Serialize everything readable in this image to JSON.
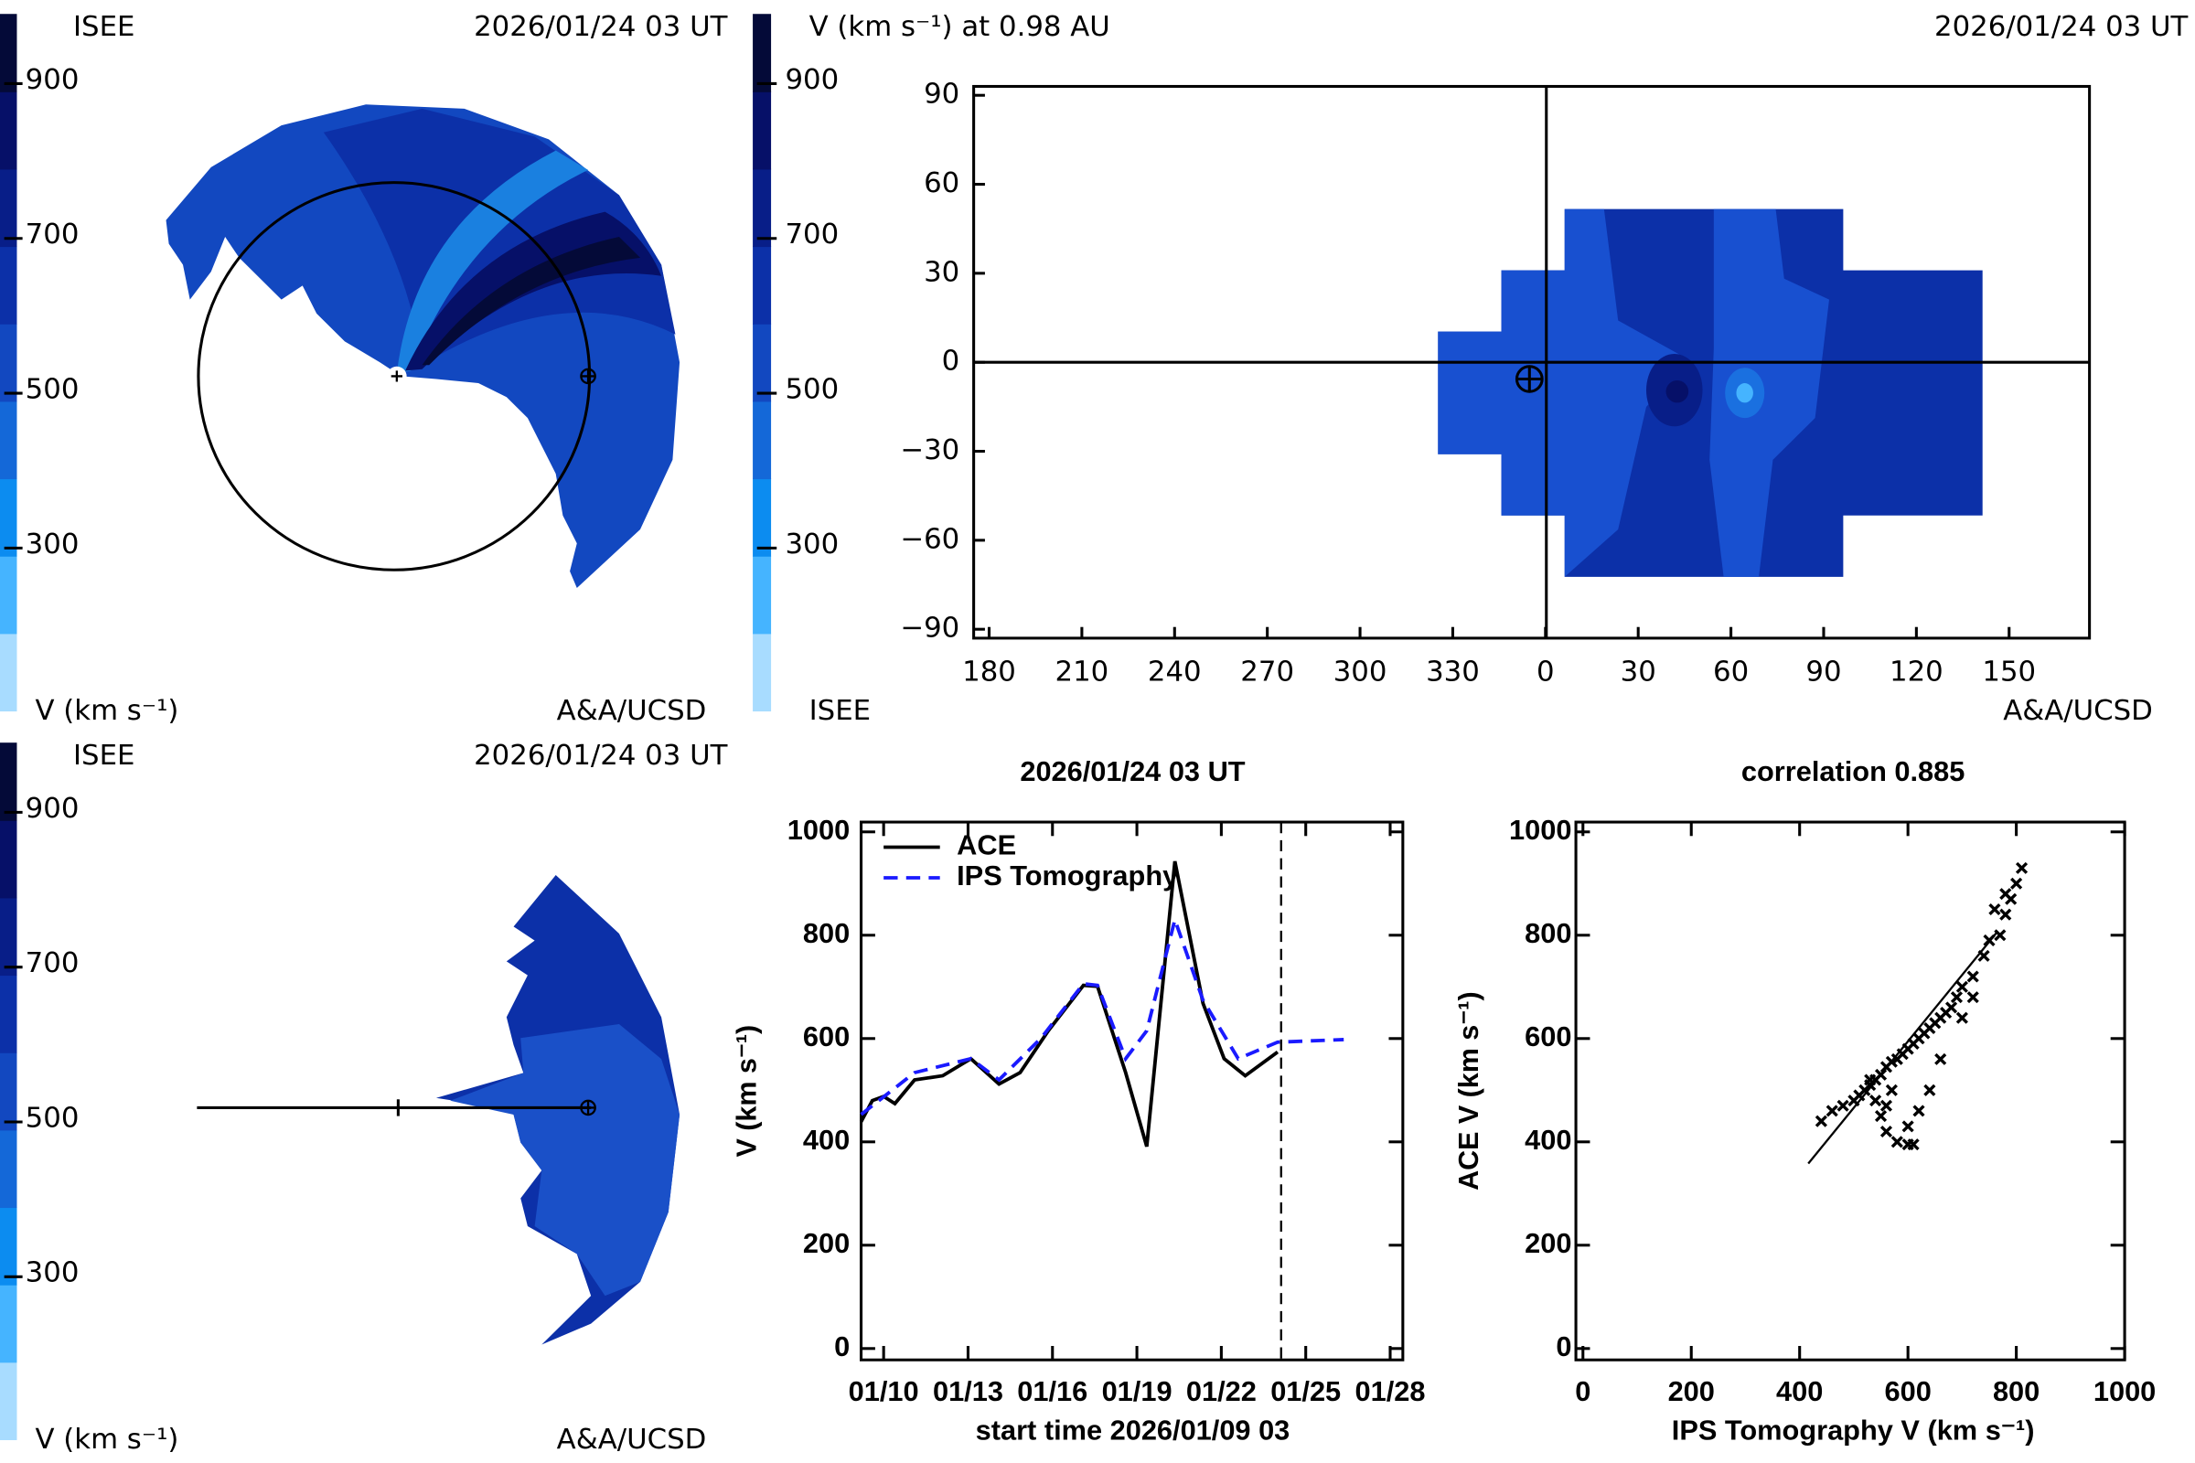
{
  "chart_data": [
    {
      "type": "polar-contour",
      "label": "ISEE",
      "date": "2026/01/24 03 UT",
      "credit": "A&A/UCSD",
      "colorbar": {
        "label": "V (km s⁻¹)",
        "lim": [
          90,
          990
        ],
        "ticks": [
          300,
          500,
          700,
          900
        ],
        "colors": [
          "#a8dcff",
          "#45b4ff",
          "#0c8cf0",
          "#1468d8",
          "#1248c0",
          "#0c30a8",
          "#081e88",
          "#061068",
          "#040a38"
        ]
      }
    },
    {
      "type": "map-contour",
      "title": "V (km s⁻¹) at 0.98 AU",
      "date": "2026/01/24 03 UT",
      "label": "ISEE",
      "credit": "A&A/UCSD",
      "colorbar": {
        "lim": [
          90,
          990
        ],
        "ticks": [
          300,
          500,
          700,
          900
        ],
        "colors": [
          "#a8dcff",
          "#45b4ff",
          "#0c8cf0",
          "#1468d8",
          "#1248c0",
          "#0c30a8",
          "#081e88",
          "#061068",
          "#040a38"
        ]
      },
      "xlim": [
        175,
        536
      ],
      "xticks": [
        180,
        210,
        240,
        270,
        300,
        330,
        {
          "value": 360,
          "label": "0"
        },
        {
          "value": 390,
          "label": "30"
        },
        {
          "value": 420,
          "label": "60"
        },
        {
          "value": 450,
          "label": "90"
        },
        {
          "value": 480,
          "label": "120"
        },
        {
          "value": 510,
          "label": "150"
        }
      ],
      "ylim": [
        -93,
        93
      ],
      "yticks": [
        {
          "value": -90,
          "label": "−90"
        },
        {
          "value": -60,
          "label": "−60"
        },
        {
          "value": -30,
          "label": "−30"
        },
        0,
        30,
        60,
        90
      ]
    },
    {
      "type": "polar-contour",
      "label": "ISEE",
      "date": "2026/01/24 03 UT",
      "credit": "A&A/UCSD",
      "colorbar": {
        "label": "V (km s⁻¹)",
        "lim": [
          90,
          990
        ],
        "ticks": [
          300,
          500,
          700,
          900
        ],
        "colors": [
          "#a8dcff",
          "#45b4ff",
          "#0c8cf0",
          "#1468d8",
          "#1248c0",
          "#0c30a8",
          "#081e88",
          "#061068",
          "#040a38"
        ]
      }
    },
    {
      "type": "line",
      "title": "2026/01/24 03 UT",
      "x_label": "start time 2026/01/09 03",
      "y_label": "V (km s⁻¹)",
      "xlim": [
        9.2,
        28.45
      ],
      "ylim": [
        -22,
        1019
      ],
      "xticks": [
        {
          "value": 10,
          "label": "01/10"
        },
        {
          "value": 13,
          "label": "01/13"
        },
        {
          "value": 16,
          "label": "01/16"
        },
        {
          "value": 19,
          "label": "01/19"
        },
        {
          "value": 22,
          "label": "01/22"
        },
        {
          "value": 25,
          "label": "01/25"
        },
        {
          "value": 28,
          "label": "01/28"
        }
      ],
      "yticks": [
        0,
        200,
        400,
        600,
        800,
        1000
      ],
      "marker_x": 24.125,
      "legend": "upper left",
      "series": [
        {
          "name": "ACE",
          "color": "#000000",
          "style": "solid",
          "x": [
            9.2,
            9.6,
            10,
            10.4,
            11.1,
            12.1,
            13.1,
            14.1,
            14.85,
            15.85,
            17.1,
            17.6,
            18.6,
            19.35,
            20.35,
            21.35,
            22.1,
            22.85,
            24.0
          ],
          "values": [
            439,
            480,
            488,
            474,
            520,
            528,
            561,
            512,
            534,
            615,
            703,
            701,
            534,
            391,
            943,
            668,
            561,
            528,
            574
          ]
        },
        {
          "name": "IPS Tomography",
          "color": "#1a1aff",
          "style": "dashed",
          "x": [
            9.2,
            11.1,
            13.1,
            14.1,
            15.6,
            17.1,
            17.6,
            18.6,
            19.35,
            20.35,
            21.35,
            22.6,
            24.0,
            26.35
          ],
          "values": [
            453,
            534,
            561,
            520,
            601,
            706,
            703,
            561,
            615,
            830,
            674,
            561,
            593,
            598
          ]
        }
      ]
    },
    {
      "type": "scatter",
      "title": "correlation 0.885",
      "x_label": "IPS Tomography V (km s⁻¹)",
      "y_label": "ACE V (km s⁻¹)",
      "xlim": [
        -13,
        1000
      ],
      "ylim": [
        -22,
        1019
      ],
      "xticks": [
        0,
        200,
        400,
        600,
        800,
        1000
      ],
      "yticks": [
        0,
        200,
        400,
        600,
        800,
        1000
      ],
      "color": "#000000",
      "x": [
        440,
        460,
        480,
        500,
        510,
        520,
        530,
        540,
        550,
        560,
        570,
        580,
        590,
        600,
        610,
        620,
        630,
        640,
        650,
        660,
        670,
        680,
        690,
        700,
        720,
        740,
        750,
        770,
        780,
        790,
        800,
        810,
        760,
        780,
        720,
        700,
        660,
        640,
        620,
        600,
        580,
        560,
        550,
        540,
        530,
        560,
        570,
        600,
        610
      ],
      "values": [
        440,
        460,
        470,
        480,
        490,
        500,
        510,
        520,
        530,
        545,
        555,
        560,
        570,
        580,
        590,
        600,
        610,
        620,
        630,
        640,
        650,
        660,
        680,
        700,
        720,
        760,
        790,
        800,
        840,
        870,
        900,
        930,
        850,
        880,
        680,
        640,
        560,
        500,
        460,
        430,
        400,
        420,
        450,
        480,
        520,
        470,
        500,
        395,
        395
      ],
      "fit_line": {
        "x": [
          416,
          766
        ],
        "values": [
          358,
          808
        ]
      }
    }
  ]
}
